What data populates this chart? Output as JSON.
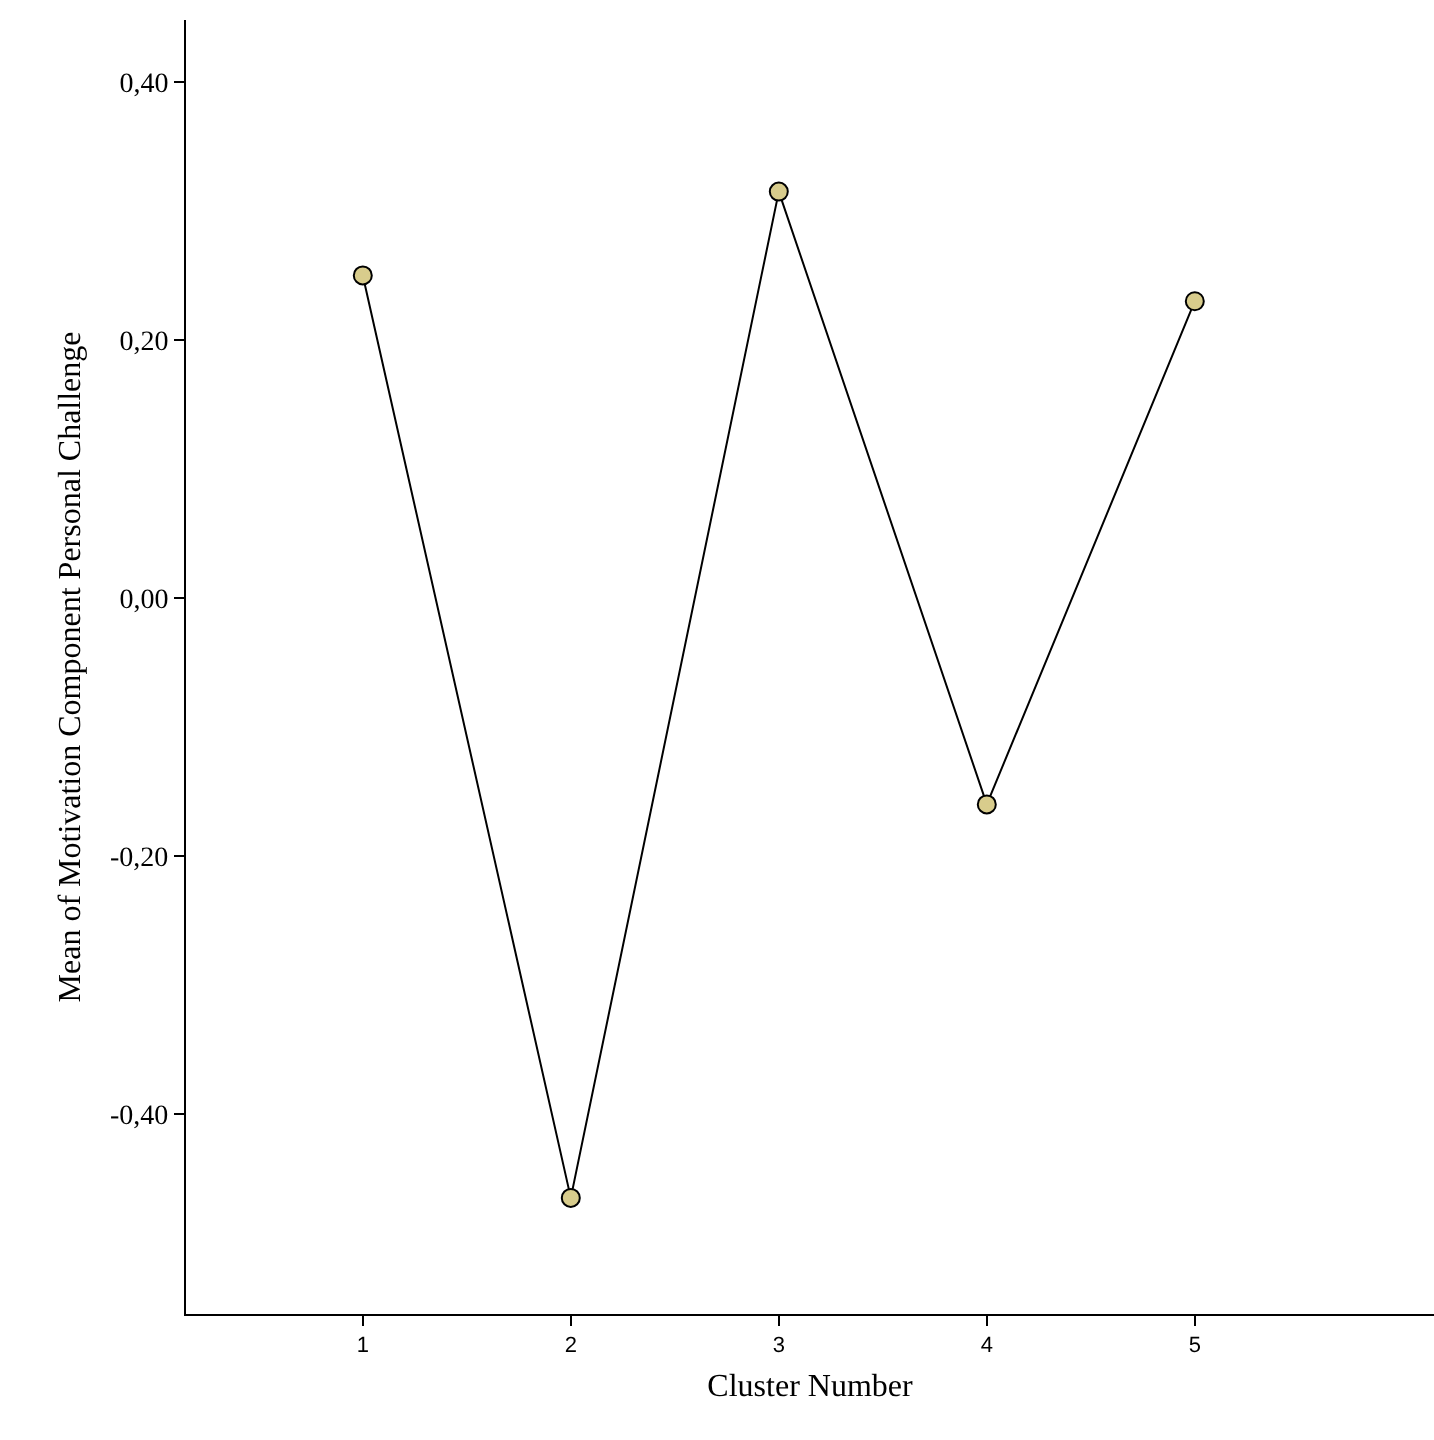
{
  "chart_data": {
    "type": "line",
    "xlabel": "Cluster Number",
    "ylabel": "Mean of Motivation Component Personal Challenge",
    "x": [
      1,
      2,
      3,
      4,
      5
    ],
    "series": [
      {
        "color": "#000000",
        "values": [
          0.25,
          -0.465,
          0.315,
          -0.16,
          0.23
        ]
      }
    ],
    "xlim": [
      0.15,
      6.15
    ],
    "xticks": [
      1,
      2,
      3,
      4,
      5
    ],
    "ylim": [
      -0.555,
      0.448
    ],
    "yticks": [
      {
        "value": -0.4,
        "label": "-0,40"
      },
      {
        "value": -0.2,
        "label": "-0,20"
      },
      {
        "value": 0,
        "label": "0,00"
      },
      {
        "value": 0.2,
        "label": "0,20"
      },
      {
        "value": 0.4,
        "label": "0,40"
      }
    ],
    "marker": "circle",
    "line_style": "solid",
    "grid": false,
    "legend": false
  }
}
